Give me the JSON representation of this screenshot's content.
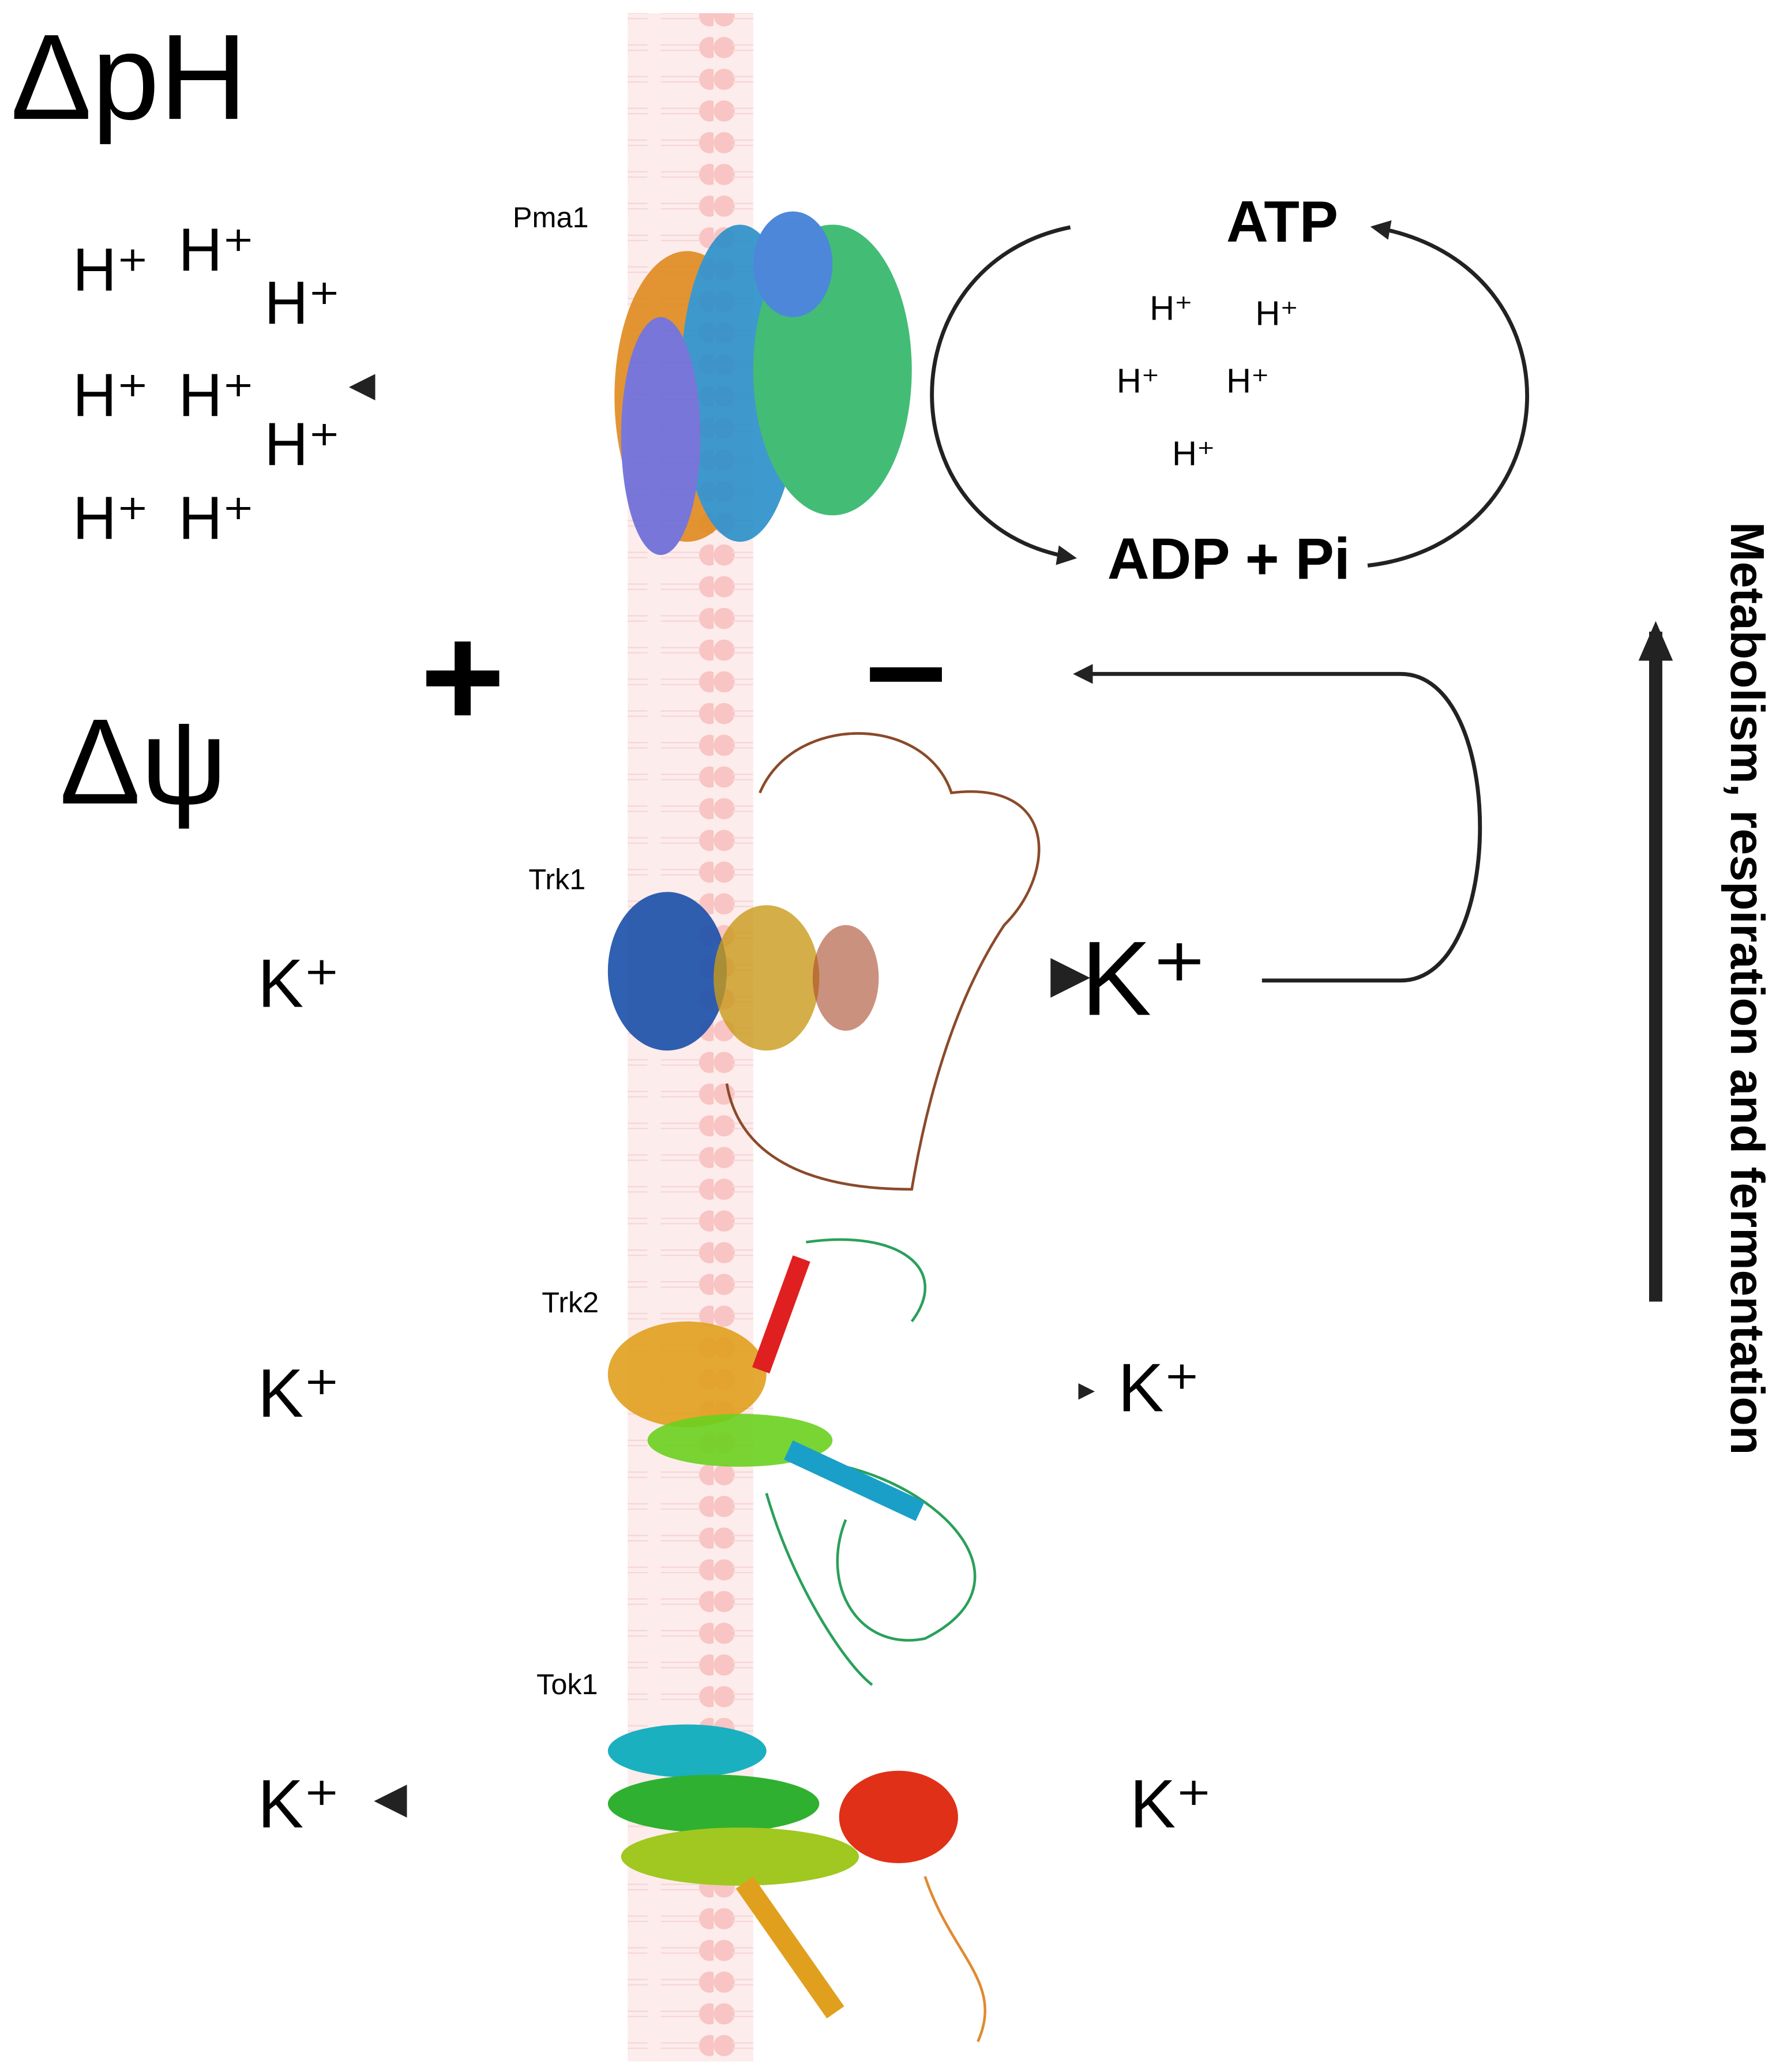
{
  "gradients": {
    "delta_ph": "ΔpH",
    "delta_psi": "Δψ"
  },
  "charges": {
    "outside": "+",
    "inside": "–"
  },
  "cycle": {
    "atp": "ATP",
    "adp": "ADP + Pi"
  },
  "protons_outside": [
    "H⁺",
    "H⁺",
    "H⁺",
    "H⁺",
    "H⁺",
    "H⁺",
    "H⁺",
    "H⁺"
  ],
  "protons_inside": [
    "H⁺",
    "H⁺",
    "H⁺",
    "H⁺",
    "H⁺"
  ],
  "transporters": [
    {
      "name": "Pma1"
    },
    {
      "name": "Trk1",
      "ion_outside": "K⁺",
      "ion_inside": "K⁺"
    },
    {
      "name": "Trk2",
      "ion_outside": "K⁺",
      "ion_inside": "K⁺"
    },
    {
      "name": "Tok1",
      "ion_outside": "K⁺",
      "ion_inside": "K⁺"
    }
  ],
  "side_label": "Metabolism, respiration and fermentation"
}
